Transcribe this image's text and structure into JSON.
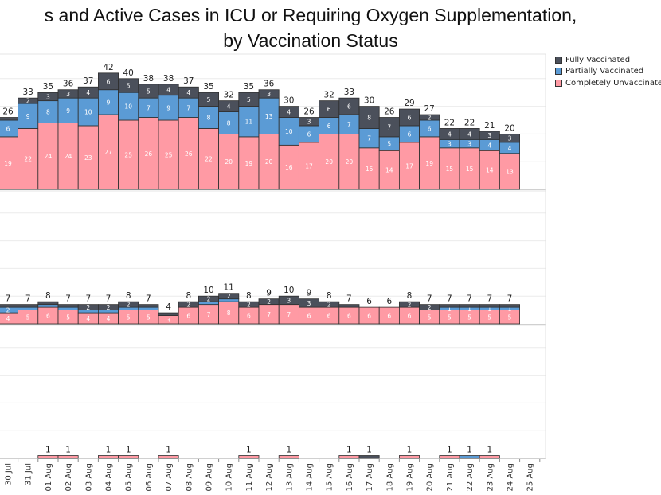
{
  "chart_data": {
    "type": "bar",
    "stacked": true,
    "title_line1": "s and Active Cases in ICU or Requiring Oxygen Supplementation,",
    "title_line2": "by Vaccination Status",
    "categories": [
      "30 Jul",
      "31 Jul",
      "01 Aug",
      "02 Aug",
      "03 Aug",
      "04 Aug",
      "05 Aug",
      "06 Aug",
      "07 Aug",
      "08 Aug",
      "09 Aug",
      "10 Aug",
      "11 Aug",
      "12 Aug",
      "13 Aug",
      "14 Aug",
      "15 Aug",
      "16 Aug",
      "17 Aug",
      "18 Aug",
      "19 Aug",
      "20 Aug",
      "21 Aug",
      "22 Aug",
      "23 Aug",
      "24 Aug",
      "25 Aug"
    ],
    "legend": {
      "placement": "top-right"
    },
    "colors": {
      "Fully Vaccinated": "#4b505b",
      "Partially Vaccinated": "#5b9bd5",
      "Completely Unvaccinated": "#ff9aa4"
    },
    "series_names": [
      "Completely Unvaccinated",
      "Partially Vaccinated",
      "Fully Vaccinated"
    ],
    "legend_labels": [
      "Fully Vaccinated",
      "Partially Vaccinated",
      "Completely Unvaccinated"
    ],
    "panels": [
      {
        "totals": [
          26,
          33,
          35,
          36,
          37,
          42,
          40,
          38,
          38,
          37,
          35,
          32,
          35,
          36,
          30,
          26,
          32,
          33,
          30,
          26,
          29,
          27,
          22,
          22,
          21,
          20,
          null
        ],
        "series": [
          {
            "name": "Completely Unvaccinated",
            "values": [
              19,
              22,
              24,
              24,
              23,
              27,
              25,
              26,
              25,
              26,
              22,
              20,
              19,
              20,
              16,
              17,
              20,
              20,
              15,
              14,
              17,
              19,
              15,
              15,
              14,
              13,
              0
            ]
          },
          {
            "name": "Partially Vaccinated",
            "values": [
              6,
              9,
              8,
              9,
              10,
              9,
              10,
              7,
              9,
              7,
              8,
              8,
              11,
              13,
              10,
              6,
              6,
              7,
              7,
              5,
              6,
              6,
              3,
              3,
              4,
              4,
              0
            ]
          },
          {
            "name": "Fully Vaccinated",
            "values": [
              1,
              2,
              3,
              3,
              4,
              6,
              5,
              5,
              4,
              4,
              5,
              4,
              5,
              3,
              4,
              3,
              6,
              6,
              8,
              7,
              6,
              2,
              4,
              4,
              3,
              3,
              0
            ]
          }
        ]
      },
      {
        "totals": [
          7,
          7,
          8,
          7,
          7,
          7,
          8,
          7,
          4,
          8,
          10,
          11,
          8,
          9,
          10,
          9,
          8,
          7,
          6,
          6,
          8,
          7,
          7,
          7,
          7,
          7,
          null
        ],
        "series": [
          {
            "name": "Completely Unvaccinated",
            "values": [
              4,
              5,
              6,
              5,
              4,
              4,
              5,
              5,
              3,
              6,
              7,
              8,
              6,
              7,
              7,
              6,
              6,
              6,
              6,
              6,
              6,
              5,
              5,
              5,
              5,
              5,
              0
            ]
          },
          {
            "name": "Partially Vaccinated",
            "values": [
              2,
              1,
              1,
              1,
              1,
              1,
              1,
              1,
              0,
              0,
              1,
              1,
              0,
              0,
              0,
              0,
              0,
              0,
              0,
              0,
              0,
              0,
              1,
              1,
              1,
              1,
              0
            ]
          },
          {
            "name": "Fully Vaccinated",
            "values": [
              1,
              1,
              1,
              1,
              2,
              2,
              2,
              1,
              1,
              2,
              2,
              2,
              2,
              2,
              3,
              3,
              2,
              1,
              0,
              0,
              2,
              2,
              1,
              1,
              1,
              1,
              0
            ]
          }
        ]
      },
      {
        "totals": [
          null,
          null,
          1,
          1,
          null,
          1,
          1,
          null,
          1,
          null,
          null,
          null,
          1,
          null,
          1,
          null,
          null,
          1,
          1,
          null,
          1,
          null,
          1,
          1,
          1,
          null,
          null
        ],
        "series": [
          {
            "name": "Completely Unvaccinated",
            "values": [
              0,
              0,
              1,
              1,
              0,
              1,
              1,
              0,
              1,
              0,
              0,
              0,
              1,
              0,
              1,
              0,
              0,
              1,
              0,
              0,
              1,
              0,
              1,
              0,
              1,
              0,
              0
            ]
          },
          {
            "name": "Partially Vaccinated",
            "values": [
              0,
              0,
              0,
              0,
              0,
              0,
              0,
              0,
              0,
              0,
              0,
              0,
              0,
              0,
              0,
              0,
              0,
              0,
              0,
              0,
              0,
              0,
              0,
              1,
              0,
              0,
              0
            ]
          },
          {
            "name": "Fully Vaccinated",
            "values": [
              0,
              0,
              0,
              0,
              0,
              0,
              0,
              0,
              0,
              0,
              0,
              0,
              0,
              0,
              0,
              0,
              0,
              0,
              1,
              0,
              0,
              0,
              0,
              0,
              0,
              0,
              0
            ]
          }
        ]
      }
    ]
  }
}
